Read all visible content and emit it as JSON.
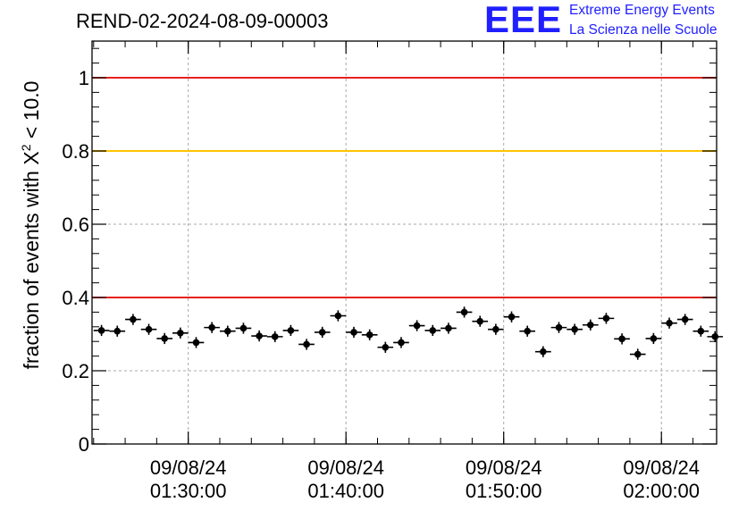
{
  "header": {
    "run_title": "REND-02-2024-08-09-00003",
    "logo_mark": "EEE",
    "logo_line1": "Extreme Energy Events",
    "logo_line2": "La Scienza nelle Scuole"
  },
  "chart_data": {
    "type": "scatter",
    "title": "REND-02-2024-08-09-00003",
    "ylabel_prefix": "fraction of events with X",
    "ylabel_sup": "2",
    "ylabel_suffix": " < 10.0",
    "ylim": [
      0,
      1.1
    ],
    "yticks": [
      0,
      0.2,
      0.4,
      0.6,
      0.8,
      1
    ],
    "ytick_labels": [
      "0",
      "0.2",
      "0.4",
      "0.6",
      "0.8",
      "1"
    ],
    "xticks": [
      {
        "time": "09/08/24 01:30:00",
        "date": "09/08/24",
        "clock": "01:30:00",
        "minutes": 30
      },
      {
        "time": "09/08/24 01:40:00",
        "date": "09/08/24",
        "clock": "01:40:00",
        "minutes": 40
      },
      {
        "time": "09/08/24 01:50:00",
        "date": "09/08/24",
        "clock": "01:50:00",
        "minutes": 50
      },
      {
        "time": "09/08/24 02:00:00",
        "date": "09/08/24",
        "clock": "02:00:00",
        "minutes": 60
      }
    ],
    "xlim_minutes": [
      23.9,
      63.5
    ],
    "grid": true,
    "reference_lines": [
      {
        "y": 1.0,
        "color": "#e8201a"
      },
      {
        "y": 0.8,
        "color": "#ffc400"
      },
      {
        "y": 0.4,
        "color": "#e8201a"
      }
    ],
    "series": [
      {
        "marker_color": "#000000",
        "x_minutes": [
          24.5,
          25.5,
          26.5,
          27.5,
          28.5,
          29.5,
          30.5,
          31.5,
          32.5,
          33.5,
          34.5,
          35.5,
          36.5,
          37.5,
          38.5,
          39.5,
          40.5,
          41.5,
          42.5,
          43.5,
          44.5,
          45.5,
          46.5,
          47.5,
          48.5,
          49.5,
          50.5,
          51.5,
          52.5,
          53.5,
          54.5,
          55.5,
          56.5,
          57.5,
          58.5,
          59.5,
          60.5,
          61.5,
          62.5,
          63.4
        ],
        "y": [
          0.31,
          0.308,
          0.34,
          0.313,
          0.288,
          0.303,
          0.277,
          0.318,
          0.308,
          0.316,
          0.295,
          0.293,
          0.31,
          0.272,
          0.305,
          0.35,
          0.305,
          0.298,
          0.264,
          0.277,
          0.323,
          0.31,
          0.316,
          0.36,
          0.335,
          0.313,
          0.347,
          0.308,
          0.252,
          0.318,
          0.313,
          0.325,
          0.343,
          0.287,
          0.245,
          0.288,
          0.33,
          0.34,
          0.308,
          0.293
        ],
        "y_err": 0.015,
        "x_half_width": 0.5
      }
    ]
  }
}
